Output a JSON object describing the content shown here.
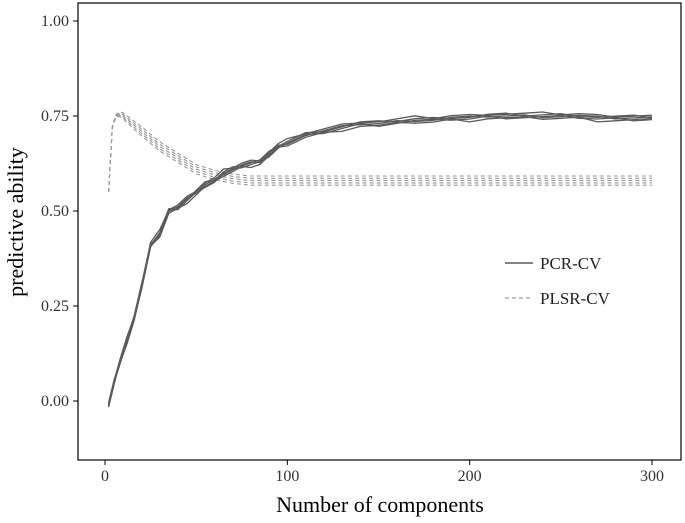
{
  "chart_data": {
    "type": "line",
    "xlabel": "Number of components",
    "ylabel": "predictive ability",
    "xlim": [
      -15,
      310
    ],
    "ylim": [
      -0.15,
      1.05
    ],
    "xticks": [
      0,
      100,
      200,
      300
    ],
    "yticks": [
      0.0,
      0.25,
      0.5,
      0.75,
      1.0
    ],
    "xtick_labels": [
      "0",
      "100",
      "200",
      "300"
    ],
    "ytick_labels": [
      "0.00",
      "0.25",
      "0.50",
      "0.75",
      "1.00"
    ],
    "grid": false,
    "legend_position": "right",
    "legend": [
      {
        "label": "PCR-CV",
        "style": "solid"
      },
      {
        "label": "PLSR-CV",
        "style": "dashed"
      }
    ],
    "colors": {
      "pcr": "#5a5a5a",
      "plsr": "#9a9a9a",
      "axis": "#000000"
    },
    "series": [
      {
        "name": "PCR-CV",
        "style": "solid",
        "replicates": 5,
        "x": [
          2,
          5,
          8,
          12,
          16,
          20,
          25,
          30,
          35,
          40,
          45,
          50,
          55,
          60,
          65,
          70,
          75,
          80,
          85,
          90,
          95,
          100,
          110,
          120,
          130,
          140,
          150,
          160,
          170,
          180,
          190,
          200,
          210,
          220,
          230,
          240,
          250,
          260,
          270,
          280,
          290,
          300
        ],
        "y": [
          -0.01,
          0.05,
          0.1,
          0.16,
          0.22,
          0.3,
          0.41,
          0.44,
          0.5,
          0.51,
          0.53,
          0.55,
          0.57,
          0.58,
          0.6,
          0.61,
          0.62,
          0.625,
          0.63,
          0.65,
          0.67,
          0.68,
          0.7,
          0.71,
          0.72,
          0.73,
          0.73,
          0.735,
          0.74,
          0.74,
          0.745,
          0.745,
          0.75,
          0.75,
          0.75,
          0.75,
          0.75,
          0.75,
          0.745,
          0.745,
          0.745,
          0.745
        ]
      },
      {
        "name": "PLSR-CV",
        "style": "dashed",
        "replicates": 5,
        "x": [
          2,
          4,
          6,
          8,
          10,
          15,
          20,
          25,
          30,
          40,
          50,
          60,
          70,
          80,
          100,
          150,
          200,
          250,
          300
        ],
        "y": [
          0.55,
          0.72,
          0.75,
          0.755,
          0.75,
          0.73,
          0.71,
          0.69,
          0.67,
          0.64,
          0.61,
          0.595,
          0.585,
          0.58,
          0.58,
          0.58,
          0.58,
          0.58,
          0.58
        ]
      }
    ]
  }
}
